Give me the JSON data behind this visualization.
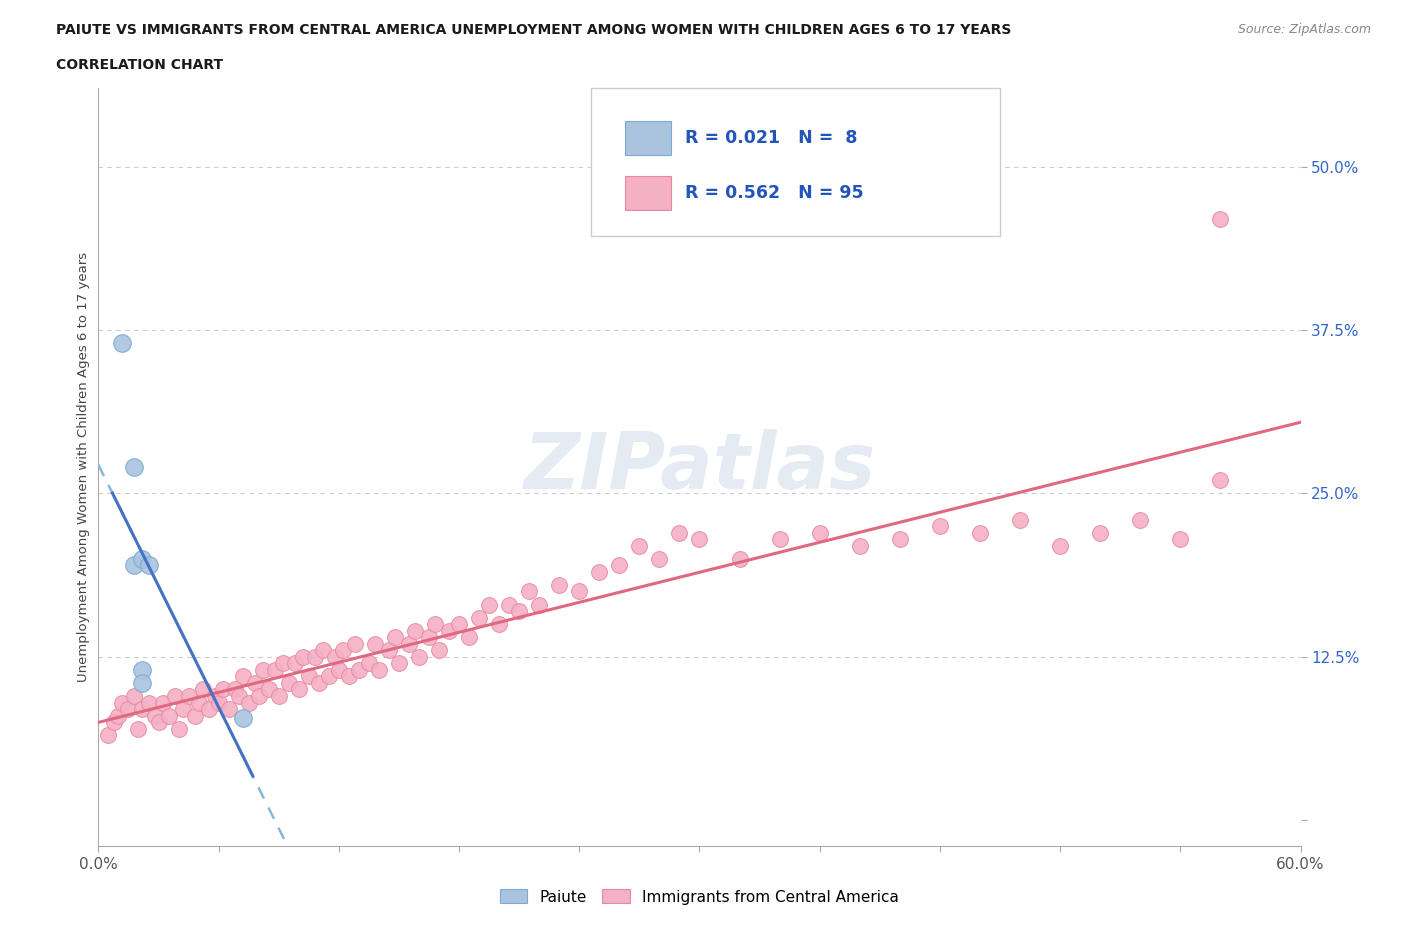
{
  "title_line1": "PAIUTE VS IMMIGRANTS FROM CENTRAL AMERICA UNEMPLOYMENT AMONG WOMEN WITH CHILDREN AGES 6 TO 17 YEARS",
  "title_line2": "CORRELATION CHART",
  "source_text": "Source: ZipAtlas.com",
  "ylabel": "Unemployment Among Women with Children Ages 6 to 17 years",
  "xlim": [
    0.0,
    0.6
  ],
  "ylim": [
    -0.02,
    0.56
  ],
  "yticks": [
    0.0,
    0.125,
    0.25,
    0.375,
    0.5
  ],
  "ytick_labels": [
    "",
    "12.5%",
    "25.0%",
    "37.5%",
    "50.0%"
  ],
  "xticks": [
    0.0,
    0.06,
    0.12,
    0.18,
    0.24,
    0.3,
    0.36,
    0.42,
    0.48,
    0.54,
    0.6
  ],
  "xtick_labels": [
    "0.0%",
    "",
    "",
    "",
    "",
    "",
    "",
    "",
    "",
    "",
    "60.0%"
  ],
  "background_color": "#ffffff",
  "grid_color": "#cccccc",
  "paiute_color": "#aac4e0",
  "paiute_edge_color": "#7aaad0",
  "paiute_line_color": "#4472c4",
  "paiute_dash_color": "#88b8d8",
  "paiute_R": 0.021,
  "paiute_N": 8,
  "immigrant_color": "#f4b0c4",
  "immigrant_edge_color": "#e888a0",
  "immigrant_line_color": "#e06880",
  "immigrant_R": 0.562,
  "immigrant_N": 95,
  "paiute_x": [
    0.012,
    0.018,
    0.018,
    0.022,
    0.022,
    0.022,
    0.025,
    0.072
  ],
  "paiute_y": [
    0.365,
    0.27,
    0.195,
    0.2,
    0.115,
    0.105,
    0.195,
    0.078
  ],
  "immigrant_x": [
    0.005,
    0.008,
    0.01,
    0.012,
    0.015,
    0.018,
    0.02,
    0.022,
    0.025,
    0.028,
    0.03,
    0.032,
    0.035,
    0.038,
    0.04,
    0.042,
    0.045,
    0.048,
    0.05,
    0.052,
    0.055,
    0.058,
    0.06,
    0.062,
    0.065,
    0.068,
    0.07,
    0.072,
    0.075,
    0.078,
    0.08,
    0.082,
    0.085,
    0.088,
    0.09,
    0.092,
    0.095,
    0.098,
    0.1,
    0.102,
    0.105,
    0.108,
    0.11,
    0.112,
    0.115,
    0.118,
    0.12,
    0.122,
    0.125,
    0.128,
    0.13,
    0.135,
    0.138,
    0.14,
    0.145,
    0.148,
    0.15,
    0.155,
    0.158,
    0.16,
    0.165,
    0.168,
    0.17,
    0.175,
    0.18,
    0.185,
    0.19,
    0.195,
    0.2,
    0.205,
    0.21,
    0.215,
    0.22,
    0.23,
    0.24,
    0.25,
    0.26,
    0.27,
    0.28,
    0.29,
    0.3,
    0.32,
    0.34,
    0.36,
    0.38,
    0.4,
    0.42,
    0.44,
    0.46,
    0.48,
    0.5,
    0.52,
    0.54,
    0.56,
    0.56
  ],
  "immigrant_y": [
    0.065,
    0.075,
    0.08,
    0.09,
    0.085,
    0.095,
    0.07,
    0.085,
    0.09,
    0.08,
    0.075,
    0.09,
    0.08,
    0.095,
    0.07,
    0.085,
    0.095,
    0.08,
    0.09,
    0.1,
    0.085,
    0.095,
    0.09,
    0.1,
    0.085,
    0.1,
    0.095,
    0.11,
    0.09,
    0.105,
    0.095,
    0.115,
    0.1,
    0.115,
    0.095,
    0.12,
    0.105,
    0.12,
    0.1,
    0.125,
    0.11,
    0.125,
    0.105,
    0.13,
    0.11,
    0.125,
    0.115,
    0.13,
    0.11,
    0.135,
    0.115,
    0.12,
    0.135,
    0.115,
    0.13,
    0.14,
    0.12,
    0.135,
    0.145,
    0.125,
    0.14,
    0.15,
    0.13,
    0.145,
    0.15,
    0.14,
    0.155,
    0.165,
    0.15,
    0.165,
    0.16,
    0.175,
    0.165,
    0.18,
    0.175,
    0.19,
    0.195,
    0.21,
    0.2,
    0.22,
    0.215,
    0.2,
    0.215,
    0.22,
    0.21,
    0.215,
    0.225,
    0.22,
    0.23,
    0.21,
    0.22,
    0.23,
    0.215,
    0.26,
    0.46
  ]
}
